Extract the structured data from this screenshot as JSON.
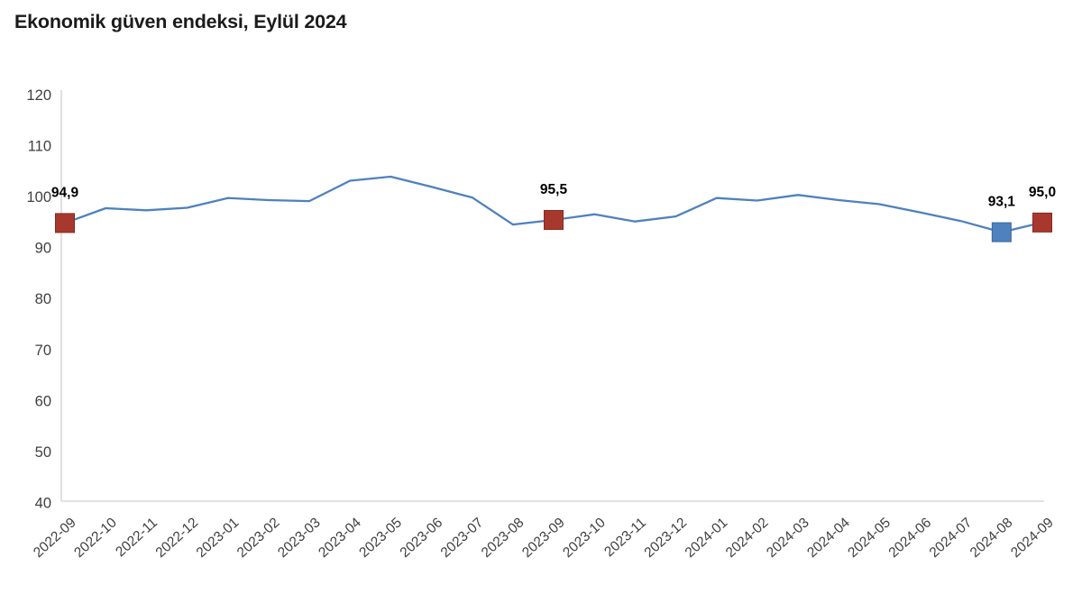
{
  "title": "Ekonomik güven endeksi, Eylül 2024",
  "colors": {
    "line": "#4e81bd",
    "marker_red": "#a8382d",
    "marker_red_border": "#86291f",
    "marker_blue": "#4e81bd",
    "marker_blue_border": "#3a689c",
    "axis_line": "#d9d9d9",
    "tick_text": "#404040",
    "point_label_text": "#000000",
    "title_text": "#1b1b1b"
  },
  "chart_data": {
    "type": "line",
    "title": "Ekonomik güven endeksi, Eylül 2024",
    "xlabel": "",
    "ylabel": "",
    "ylim": [
      40,
      120
    ],
    "yticks": [
      40,
      50,
      60,
      70,
      80,
      90,
      100,
      110,
      120
    ],
    "grid": false,
    "legend": false,
    "x": [
      "2022-09",
      "2022-10",
      "2022-11",
      "2022-12",
      "2023-01",
      "2023-02",
      "2023-03",
      "2023-04",
      "2023-05",
      "2023-06",
      "2023-07",
      "2023-08",
      "2023-09",
      "2023-10",
      "2023-11",
      "2023-12",
      "2024-01",
      "2024-02",
      "2024-03",
      "2024-04",
      "2024-05",
      "2024-06",
      "2024-07",
      "2024-08",
      "2024-09"
    ],
    "series": [
      {
        "name": "Ekonomik güven endeksi",
        "values": [
          94.9,
          97.8,
          97.4,
          97.9,
          99.8,
          99.4,
          99.2,
          103.2,
          104.0,
          102.0,
          99.9,
          94.6,
          95.5,
          96.6,
          95.2,
          96.2,
          99.8,
          99.3,
          100.4,
          99.4,
          98.6,
          97.0,
          95.3,
          93.1,
          95.0
        ]
      }
    ],
    "highlighted_points": [
      {
        "x": "2022-09",
        "index": 0,
        "value": 94.9,
        "label": "94,9",
        "marker": "red"
      },
      {
        "x": "2023-09",
        "index": 12,
        "value": 95.5,
        "label": "95,5",
        "marker": "red"
      },
      {
        "x": "2024-08",
        "index": 23,
        "value": 93.1,
        "label": "93,1",
        "marker": "blue"
      },
      {
        "x": "2024-09",
        "index": 24,
        "value": 95.0,
        "label": "95,0",
        "marker": "red"
      }
    ]
  }
}
